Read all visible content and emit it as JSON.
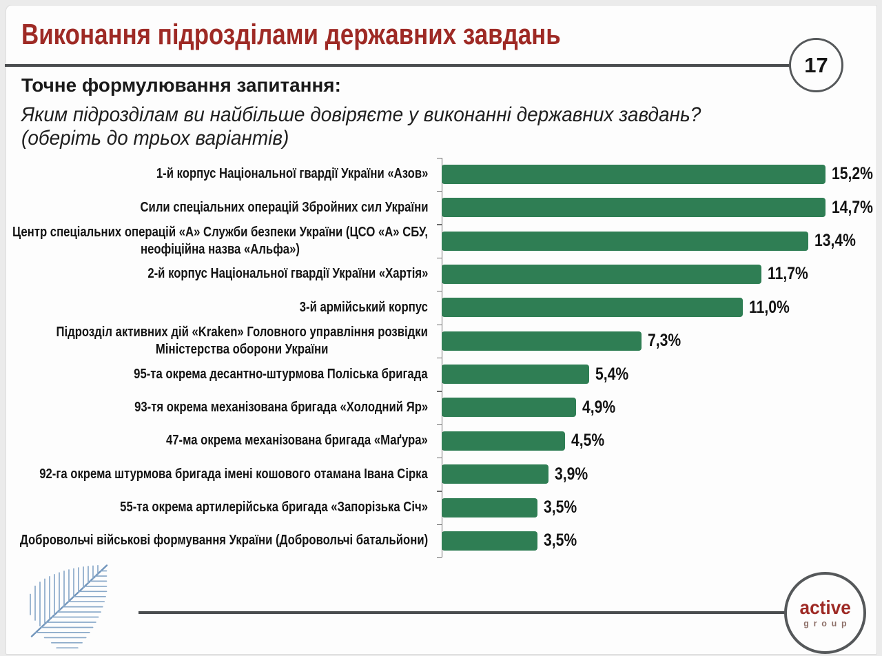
{
  "header": {
    "title": "Виконання підрозділами державних завдань",
    "slide_number": "17"
  },
  "question": {
    "heading": "Точне формулювання запитання:",
    "line1": "Яким підрозділам ви найбільше довіряєте у виконанні державних завдань?",
    "line2": "(оберіть до трьох варіантів)"
  },
  "chart_data": {
    "type": "bar",
    "orientation": "horizontal",
    "categories": [
      "1-й корпус Національної гвардії України «Азов»",
      "Сили спеціальних операцій Збройних сил України",
      "Центр спеціальних операцій «А» Служби безпеки України (ЦСО «А» СБУ,\nнеофіційна назва «Альфа»)",
      "2-й корпус Національної гвардії України «Хартія»",
      "3-й армійський корпус",
      "Підрозділ активних дій «Kraken» Головного управління розвідки\nМіністерства оборони України",
      "95-та окрема десантно-штурмова Поліська бригада",
      "93-тя окрема механізована бригада «Холодний Яр»",
      "47-ма окрема механізована бригада «Маґура»",
      "92-га окрема штурмова бригада імені кошового отамана Івана Сірка",
      "55-та окрема артилерійська бригада «Запорізька Січ»",
      "Добровольчі військові формування України (Добровольчі батальйони)"
    ],
    "values": [
      15.2,
      14.7,
      13.4,
      11.7,
      11.0,
      7.3,
      5.4,
      4.9,
      4.5,
      3.9,
      3.5,
      3.5
    ],
    "value_labels": [
      "15,2%",
      "14,7%",
      "13,4%",
      "11,7%",
      "11,0%",
      "7,3%",
      "5,4%",
      "4,9%",
      "4,5%",
      "3,9%",
      "3,5%",
      "3,5%"
    ],
    "title": "Виконання підрозділами державних завдань",
    "xlabel": "",
    "ylabel": "",
    "xlim": [
      0,
      14.03
    ],
    "grid": false,
    "legend": false,
    "bar_color": "#2f7e54"
  },
  "footer": {
    "logo_primary": "active",
    "logo_secondary": "group"
  },
  "colors": {
    "accent_red": "#9e2a25",
    "bar_green": "#2f7e54",
    "line_gray": "#4a4d4f",
    "circle_gray": "#55585a",
    "axis_gray": "#6b6b6b",
    "leaf_blue": "#8aa9c9",
    "leaf_stem": "#7195bb",
    "group_color": "#8d6f68",
    "text": "#161616"
  }
}
